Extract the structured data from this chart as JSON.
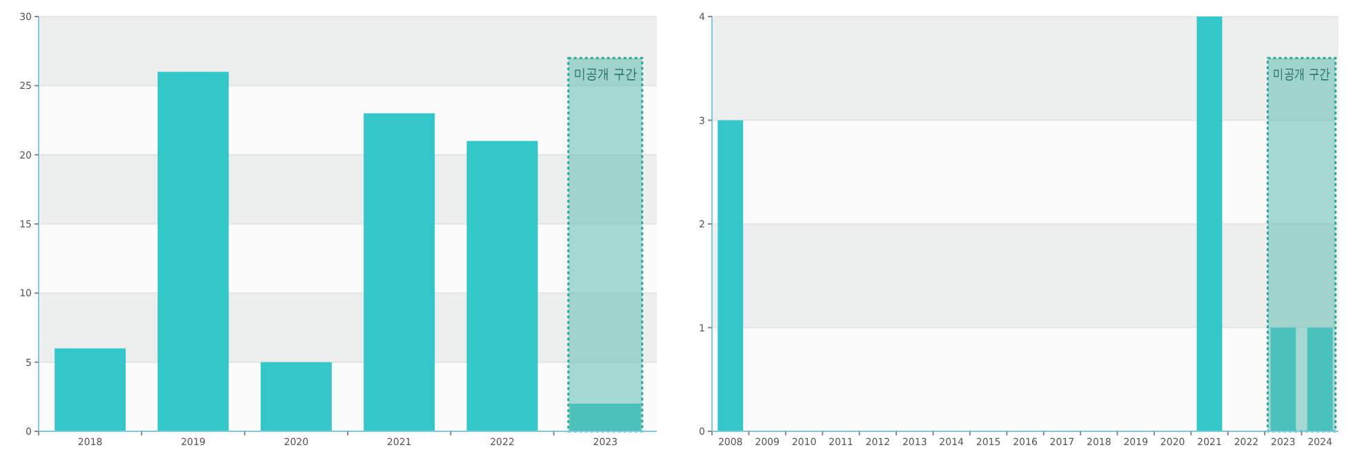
{
  "chart_data": [
    {
      "type": "bar",
      "categories": [
        "2018",
        "2019",
        "2020",
        "2021",
        "2022",
        "2023"
      ],
      "values": [
        6,
        26,
        5,
        23,
        21,
        2
      ],
      "color": "#33c7c9",
      "ylim": [
        0,
        30
      ],
      "yticks": [
        0,
        5,
        10,
        15,
        20,
        25,
        30
      ],
      "grid": "y",
      "bands": [
        {
          "axis": "x",
          "from": "2023",
          "to": "2023",
          "label": "미공개 구간",
          "color": "#5fbcb0"
        }
      ]
    },
    {
      "type": "bar",
      "categories": [
        "2008",
        "2009",
        "2010",
        "2011",
        "2012",
        "2013",
        "2014",
        "2015",
        "2016",
        "2017",
        "2018",
        "2019",
        "2020",
        "2021",
        "2022",
        "2023",
        "2024"
      ],
      "values": [
        3,
        0,
        0,
        0,
        0,
        0,
        0,
        0,
        0,
        0,
        0,
        0,
        0,
        4,
        0,
        1,
        1
      ],
      "color": "#33c7c9",
      "ylim": [
        0,
        4
      ],
      "yticks": [
        0,
        1,
        2,
        3,
        4
      ],
      "grid": "y",
      "bands": [
        {
          "axis": "x",
          "from": "2023",
          "to": "2024",
          "label": "미공개 구간",
          "color": "#5fbcb0"
        }
      ]
    }
  ]
}
